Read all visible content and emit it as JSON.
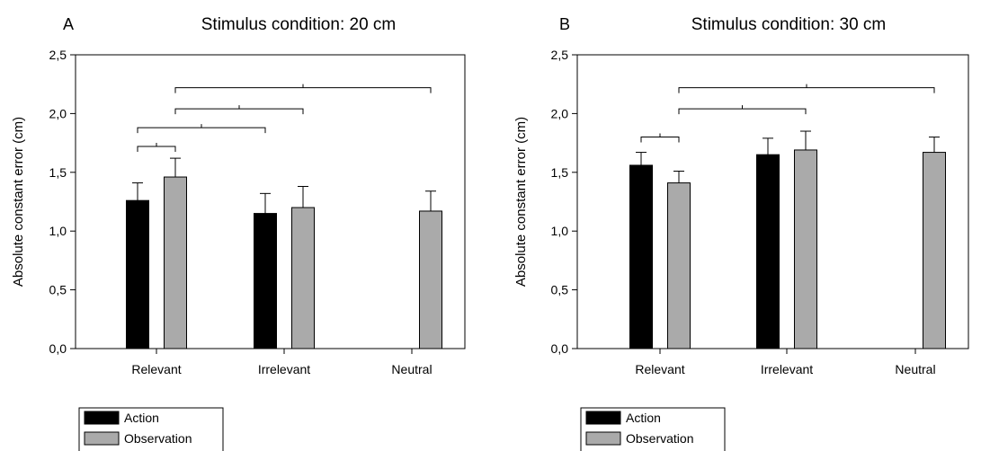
{
  "chart_data": [
    {
      "type": "bar",
      "panel_label": "A",
      "title": "Stimulus condition: 20 cm",
      "xlabel": "",
      "ylabel": "Absolute constant error (cm)",
      "ylim": [
        0,
        2.5
      ],
      "yticks": [
        "0,0",
        "0,5",
        "1,0",
        "1,5",
        "2,0",
        "2,5"
      ],
      "ytick_values": [
        0,
        0.5,
        1.0,
        1.5,
        2.0,
        2.5
      ],
      "categories": [
        "Relevant",
        "Irrelevant",
        "Neutral"
      ],
      "series": [
        {
          "name": "Action",
          "color": "#000000",
          "values": [
            1.26,
            1.15,
            null
          ],
          "errors": [
            0.15,
            0.17,
            null
          ]
        },
        {
          "name": "Observation",
          "color": "#aaaaaa",
          "values": [
            1.46,
            1.2,
            1.17
          ],
          "errors": [
            0.16,
            0.18,
            0.17
          ]
        }
      ],
      "significance_brackets": [
        {
          "from": {
            "category": 0,
            "series": 0
          },
          "to": {
            "category": 0,
            "series": 1
          },
          "y": 1.72
        },
        {
          "from": {
            "category": 0,
            "series": 0
          },
          "to": {
            "category": 1,
            "series": 0
          },
          "y": 1.88
        },
        {
          "from": {
            "category": 0,
            "series": 1
          },
          "to": {
            "category": 1,
            "series": 1
          },
          "y": 2.04
        },
        {
          "from": {
            "category": 0,
            "series": 1
          },
          "to": {
            "category": 2,
            "series": 1
          },
          "y": 2.22
        }
      ],
      "legend": {
        "placement": "bottom-left",
        "entries": [
          "Action",
          "Observation"
        ]
      },
      "grid": false
    },
    {
      "type": "bar",
      "panel_label": "B",
      "title": "Stimulus condition: 30 cm",
      "xlabel": "",
      "ylabel": "Absolute constant error (cm)",
      "ylim": [
        0,
        2.5
      ],
      "yticks": [
        "0,0",
        "0,5",
        "1,0",
        "1,5",
        "2,0",
        "2,5"
      ],
      "ytick_values": [
        0,
        0.5,
        1.0,
        1.5,
        2.0,
        2.5
      ],
      "categories": [
        "Relevant",
        "Irrelevant",
        "Neutral"
      ],
      "series": [
        {
          "name": "Action",
          "color": "#000000",
          "values": [
            1.56,
            1.65,
            null
          ],
          "errors": [
            0.11,
            0.14,
            null
          ]
        },
        {
          "name": "Observation",
          "color": "#aaaaaa",
          "values": [
            1.41,
            1.69,
            1.67
          ],
          "errors": [
            0.1,
            0.16,
            0.13
          ]
        }
      ],
      "significance_brackets": [
        {
          "from": {
            "category": 0,
            "series": 0
          },
          "to": {
            "category": 0,
            "series": 1
          },
          "y": 1.8
        },
        {
          "from": {
            "category": 0,
            "series": 1
          },
          "to": {
            "category": 1,
            "series": 1
          },
          "y": 2.04
        },
        {
          "from": {
            "category": 0,
            "series": 1
          },
          "to": {
            "category": 2,
            "series": 1
          },
          "y": 2.22
        }
      ],
      "legend": {
        "placement": "bottom-left",
        "entries": [
          "Action",
          "Observation"
        ]
      },
      "grid": false
    }
  ]
}
